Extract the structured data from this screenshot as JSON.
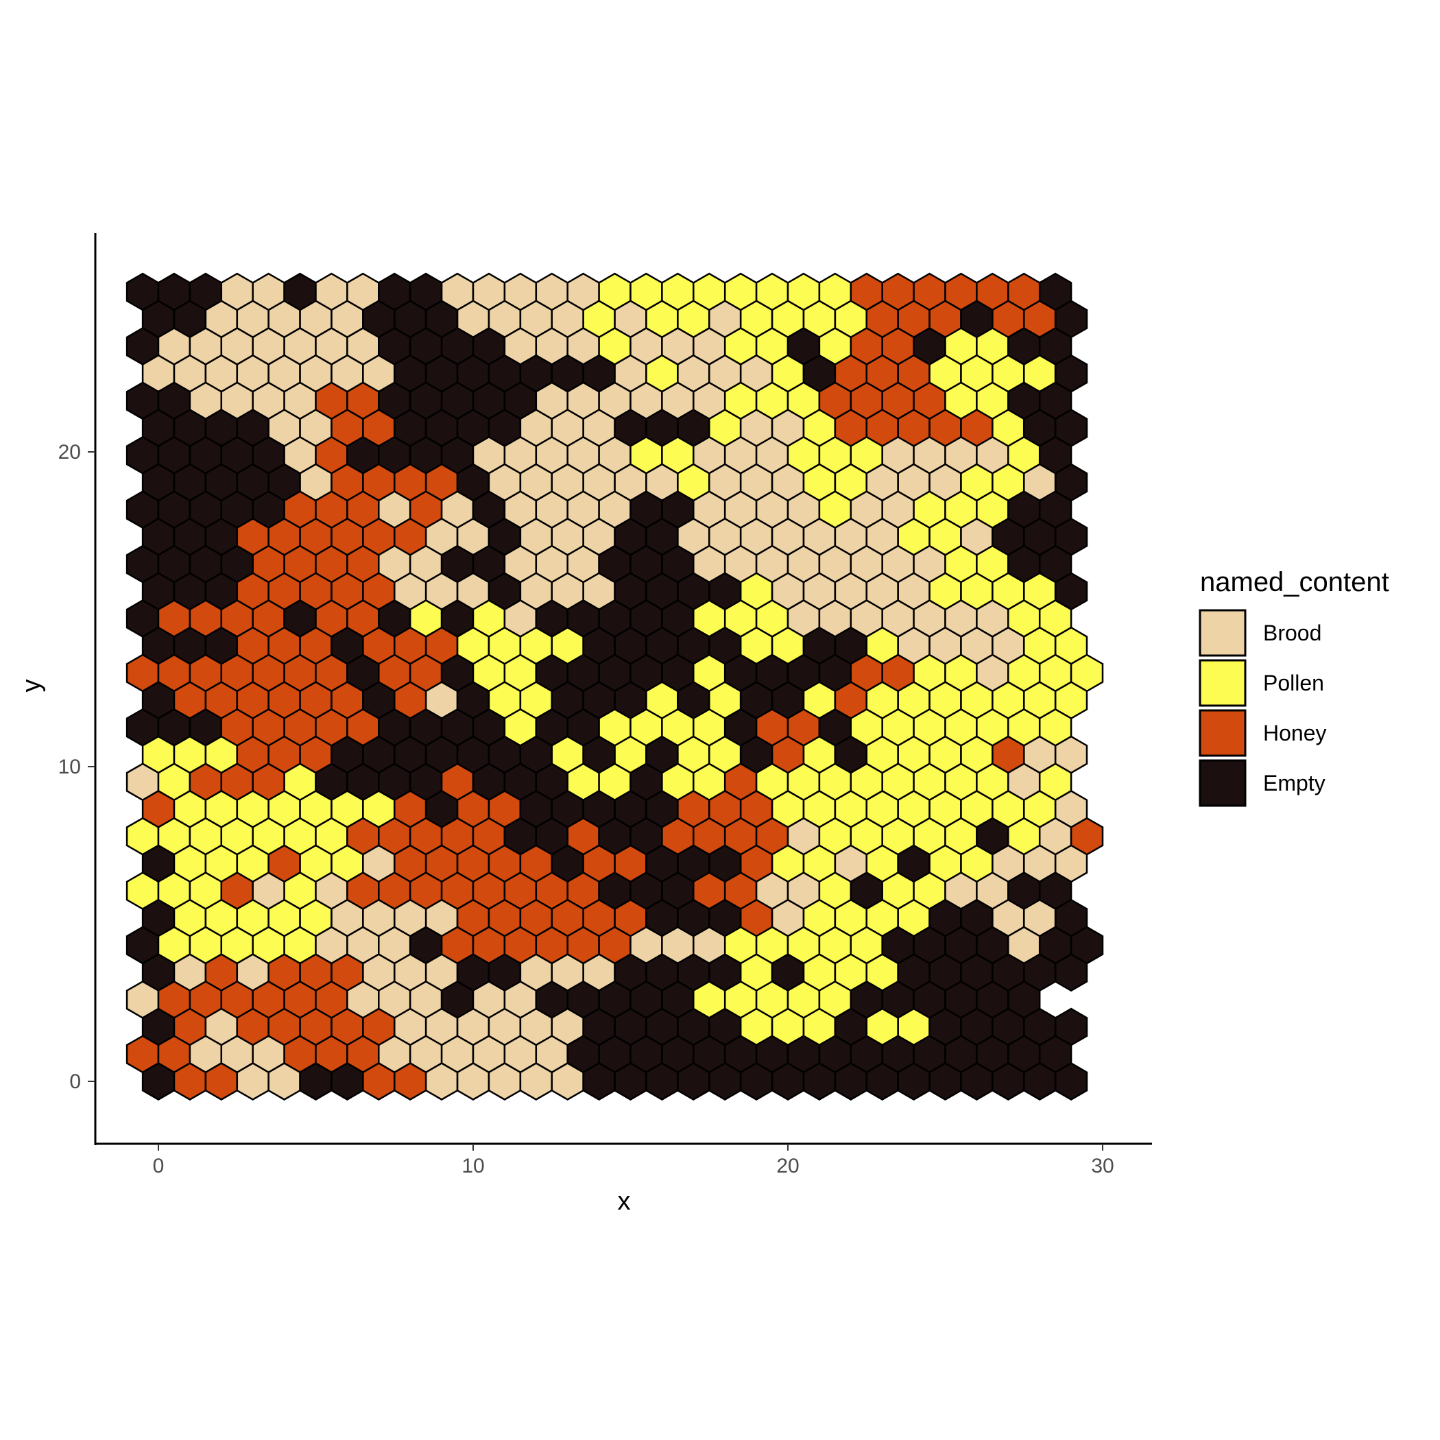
{
  "chart_data": {
    "type": "heatmap",
    "geometry": "hexagonal",
    "xlabel": "x",
    "ylabel": "y",
    "xlim": [
      -2,
      31.5
    ],
    "ylim": [
      -1.9,
      27
    ],
    "x_ticks": [
      0,
      10,
      20,
      30
    ],
    "y_ticks": [
      0,
      10,
      20
    ],
    "grid": false,
    "legend": {
      "title": "named_content",
      "position": "right",
      "entries": [
        {
          "key": "B",
          "label": "Brood",
          "color": "#EED3A6"
        },
        {
          "key": "P",
          "label": "Pollen",
          "color": "#FCFC52"
        },
        {
          "key": "H",
          "label": "Honey",
          "color": "#D24A0E"
        },
        {
          "key": "E",
          "label": "Empty",
          "color": "#1B0F0F"
        }
      ]
    },
    "cell_outline_color": "#000000",
    "grid_rows_note": "rows listed from top (y=25.5) to bottom (y=0); odd-offset rows start at x=0, even rows at x=-0.5; one code per cell, spacing 1 in x and 0.865 in y",
    "rows": [
      "EEEBBEBBEEBBBBBPPPPPPPPHHHHHHE",
      "EEBBBBBEEEBBBBPBPPBPPPPHHHEHHE",
      "EBBBBBBBEEEEBBBPBBBPPEPHHEPPEE",
      "BBBBBBBBEEEEEEEBPBBBPEHHHPPPPE",
      "EEBBBBHHEEEEEBBBBBBPPPHHHHPPEE",
      "EEEEBBHHEEEEBBBEEEPBBPHHHHHPEE",
      "EEEEEBHEEEEBBBBBPPBBBPPPBBBBPE",
      "EEEEEBHHHHEBBBBBBPBBBPPBBBPPBE",
      "EEEEEHHHBHBEBBBBEEBBBBPBBPPPEE",
      "EEEHHHHHHBBEBBBEEBBBBBBBPPBEEE",
      "EEEEHHHHBBEEBBBEEEBBBBBBBBPPEE",
      "EEEHHHHHBBBEBBBEEEEPBBBBBPPPPE",
      "EHHHHEHHEPEPBEEEEEPPPBBBBBBBPP",
      "EEEHHHEHHHPPPPEEEEEPPEEPBBBBPPP",
      "HHHHHHHEHHEPPEEEEEPEEEEHHPPBPPP",
      "EHHHHHHEHBEPPEEEPEPEEPHPPPPPPPP",
      "EEEHHHHHEEEEPEEPPPPEHHEPPPPPPP",
      "PPPHHHEEEEEEEPEPEPPEHPEPPPPHBB",
      "BPHHHPEEEEHEEEPPEPPHPPPPPPPPBP",
      "HPPPPPPPHEHHEEEEEHHHPPPPPPPPPB",
      "PPPPPPPHHHHHEEHEEHHHHBPPPPPEPBH",
      "EPPPHPPBHHHHHEHHEEEHPPBPEPPBBBHH",
      "PPPHBPBHHHHHHHHEEEHHBBPEPPBBEE",
      "EPPPPPBBBBHHHHHHEEEHBPPPPEEBBEE",
      "EPPPPPBBBEHHHHHHBBBPPPPPEEEEBEE",
      "EBHBHHHBBBEEBBBEEEEPEPPPEEEEEE",
      "BHHHHHHBBBEBBEEEEEPPPPPEEEEEE",
      "EHBHHHHHBBBBBBEEEEEPPPEPPEEEEE",
      "HHBBBHHHBBBBBBEEEEEEEEEEEEEEEE",
      "EHHBBEEHHBBBBBEEEEEEEEEEEEEEEE"
    ]
  }
}
